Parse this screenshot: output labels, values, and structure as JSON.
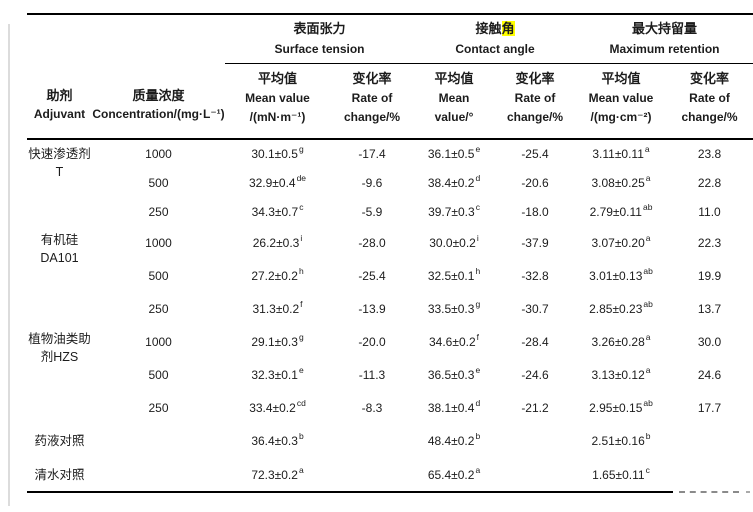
{
  "page": {
    "background_color": "#ffffff",
    "text_color": "#1c1c1c",
    "border_color": "#000000",
    "highlight_color": "#ffff00"
  },
  "table": {
    "col_headers": {
      "adjuvant": {
        "zh": "助剂",
        "en": "Adjuvant"
      },
      "concentration": {
        "zh": "质量浓度",
        "en": "Concentration/(mg·L⁻¹)"
      }
    },
    "groups": [
      {
        "zh": "表面张力",
        "en": "Surface tension",
        "sub": [
          {
            "zh": "平均值",
            "en1": "Mean value",
            "en2": "/(mN·m⁻¹)"
          },
          {
            "zh": "变化率",
            "en1": "Rate of",
            "en2": "change/%"
          }
        ]
      },
      {
        "zh_pre": "接触",
        "zh_hl": "角",
        "en": "Contact angle",
        "sub": [
          {
            "zh": "平均值",
            "en1": "Mean",
            "en2": "value/°"
          },
          {
            "zh": "变化率",
            "en1": "Rate of",
            "en2": "change/%"
          }
        ]
      },
      {
        "zh": "最大持留量",
        "en": "Maximum retention",
        "sub": [
          {
            "zh": "平均值",
            "en1": "Mean value",
            "en2": "/(mg·cm⁻²)"
          },
          {
            "zh": "变化率",
            "en1": "Rate of",
            "en2": "change/%"
          }
        ]
      }
    ],
    "rows": [
      {
        "adjuvant_lines": [
          "快速渗透剂",
          "T"
        ],
        "rowspan": 3,
        "conc": "1000",
        "st": {
          "v": "30.1±0.5",
          "s": "g"
        },
        "st_rate": "-17.4",
        "ca": {
          "v": "36.1±0.5",
          "s": "e"
        },
        "ca_rate": "-25.4",
        "mr": {
          "v": "3.11±0.11",
          "s": "a"
        },
        "mr_rate": "23.8"
      },
      {
        "conc": "500",
        "st": {
          "v": "32.9±0.4",
          "s": "de"
        },
        "st_rate": "-9.6",
        "ca": {
          "v": "38.4±0.2",
          "s": "d"
        },
        "ca_rate": "-20.6",
        "mr": {
          "v": "3.08±0.25",
          "s": "a"
        },
        "mr_rate": "22.8"
      },
      {
        "conc": "250",
        "st": {
          "v": "34.3±0.7",
          "s": "c"
        },
        "st_rate": "-5.9",
        "ca": {
          "v": "39.7±0.3",
          "s": "c"
        },
        "ca_rate": "-18.0",
        "mr": {
          "v": "2.79±0.11",
          "s": "ab"
        },
        "mr_rate": "11.0"
      },
      {
        "adjuvant_lines": [
          "有机硅",
          "DA101"
        ],
        "rowspan": 3,
        "conc": "1000",
        "st": {
          "v": "26.2±0.3",
          "s": "i"
        },
        "st_rate": "-28.0",
        "ca": {
          "v": "30.0±0.2",
          "s": "i"
        },
        "ca_rate": "-37.9",
        "mr": {
          "v": "3.07±0.20",
          "s": "a"
        },
        "mr_rate": "22.3"
      },
      {
        "conc": "500",
        "st": {
          "v": "27.2±0.2",
          "s": "h"
        },
        "st_rate": "-25.4",
        "ca": {
          "v": "32.5±0.1",
          "s": "h"
        },
        "ca_rate": "-32.8",
        "mr": {
          "v": "3.01±0.13",
          "s": "ab"
        },
        "mr_rate": "19.9"
      },
      {
        "conc": "250",
        "st": {
          "v": "31.3±0.2",
          "s": "f"
        },
        "st_rate": "-13.9",
        "ca": {
          "v": "33.5±0.3",
          "s": "g"
        },
        "ca_rate": "-30.7",
        "mr": {
          "v": "2.85±0.23",
          "s": "ab"
        },
        "mr_rate": "13.7"
      },
      {
        "adjuvant_lines": [
          "植物油类助",
          "剂HZS"
        ],
        "rowspan": 3,
        "conc": "1000",
        "st": {
          "v": "29.1±0.3",
          "s": "g"
        },
        "st_rate": "-20.0",
        "ca": {
          "v": "34.6±0.2",
          "s": "f"
        },
        "ca_rate": "-28.4",
        "mr": {
          "v": "3.26±0.28",
          "s": "a"
        },
        "mr_rate": "30.0"
      },
      {
        "conc": "500",
        "st": {
          "v": "32.3±0.1",
          "s": "e"
        },
        "st_rate": "-11.3",
        "ca": {
          "v": "36.5±0.3",
          "s": "e"
        },
        "ca_rate": "-24.6",
        "mr": {
          "v": "3.13±0.12",
          "s": "a"
        },
        "mr_rate": "24.6"
      },
      {
        "conc": "250",
        "st": {
          "v": "33.4±0.2",
          "s": "cd"
        },
        "st_rate": "-8.3",
        "ca": {
          "v": "38.1±0.4",
          "s": "d"
        },
        "ca_rate": "-21.2",
        "mr": {
          "v": "2.95±0.15",
          "s": "ab"
        },
        "mr_rate": "17.7"
      },
      {
        "adjuvant_lines": [
          "药液对照"
        ],
        "rowspan": 1,
        "conc": "",
        "st": {
          "v": "36.4±0.3",
          "s": "b"
        },
        "st_rate": "",
        "ca": {
          "v": "48.4±0.2",
          "s": "b"
        },
        "ca_rate": "",
        "mr": {
          "v": "2.51±0.16",
          "s": "b"
        },
        "mr_rate": ""
      },
      {
        "adjuvant_lines": [
          "清水对照"
        ],
        "rowspan": 1,
        "conc": "",
        "st": {
          "v": "72.3±0.2",
          "s": "a"
        },
        "st_rate": "",
        "ca": {
          "v": "65.4±0.2",
          "s": "a"
        },
        "ca_rate": "",
        "mr": {
          "v": "1.65±0.11",
          "s": "c"
        },
        "mr_rate": ""
      }
    ]
  }
}
